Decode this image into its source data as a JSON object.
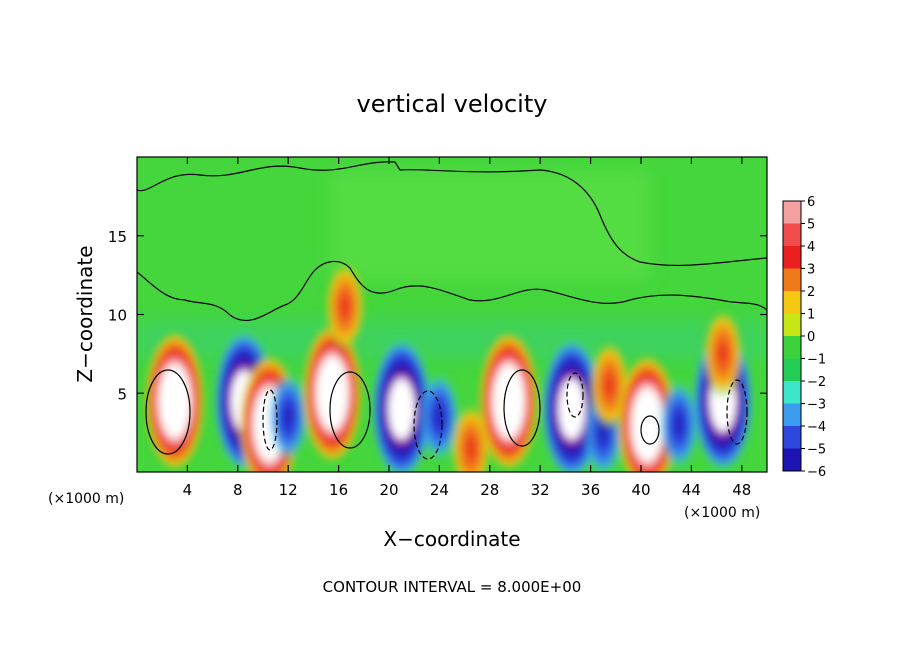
{
  "chart_data": {
    "type": "heatmap",
    "title": "vertical velocity",
    "xlabel": "X−coordinate",
    "ylabel": "Z−coordinate",
    "x_unit_left": "(×1000 m)",
    "x_unit_right": "(×1000 m)",
    "footer": "CONTOUR INTERVAL = 8.000E+00",
    "xlim": [
      0,
      50
    ],
    "ylim": [
      0,
      20
    ],
    "x_ticks": [
      4,
      8,
      12,
      16,
      20,
      24,
      28,
      32,
      36,
      40,
      44,
      48
    ],
    "x_tick_labels": [
      "4",
      "8",
      "12",
      "16",
      "20",
      "24",
      "28",
      "32",
      "36",
      "40",
      "44",
      "48"
    ],
    "y_ticks": [
      5,
      10,
      15
    ],
    "y_tick_labels": [
      "5",
      "10",
      "15"
    ],
    "colorbar": {
      "min": -6,
      "max": 6,
      "labels": [
        "6",
        "5",
        "4",
        "3",
        "2",
        "1",
        "0",
        "−1",
        "−2",
        "−3",
        "−4",
        "−5",
        "−6"
      ],
      "colors": [
        "#f5a0a0",
        "#f24b4b",
        "#ea1f1f",
        "#f07a1a",
        "#f5c814",
        "#c8e614",
        "#3cd23c",
        "#22cc55",
        "#3ce6c8",
        "#3c9cf0",
        "#2d46dc",
        "#1e14b4",
        "#7814a0"
      ]
    },
    "cells": [
      {
        "x": 3,
        "z": 4.5,
        "w": 7.0
      },
      {
        "x": 8.5,
        "z": 4.5,
        "w": -5.5
      },
      {
        "x": 10.5,
        "z": 3.0,
        "w": 6.0
      },
      {
        "x": 12.0,
        "z": 3.5,
        "w": -3.0
      },
      {
        "x": 15.5,
        "z": 5.0,
        "w": 7.0
      },
      {
        "x": 16.5,
        "z": 10.5,
        "w": 3.5
      },
      {
        "x": 21.0,
        "z": 4.0,
        "w": -6.0
      },
      {
        "x": 24.0,
        "z": 3.5,
        "w": -4.0
      },
      {
        "x": 26.5,
        "z": 1.5,
        "w": 4.0
      },
      {
        "x": 29.5,
        "z": 4.5,
        "w": 7.0
      },
      {
        "x": 34.5,
        "z": 4.0,
        "w": -5.5
      },
      {
        "x": 37.0,
        "z": 2.5,
        "w": -4.5
      },
      {
        "x": 37.5,
        "z": 5.5,
        "w": 2.5
      },
      {
        "x": 40.5,
        "z": 3.0,
        "w": 6.0
      },
      {
        "x": 43.0,
        "z": 3.0,
        "w": -4.0
      },
      {
        "x": 46.5,
        "z": 4.5,
        "w": -6.0
      },
      {
        "x": 46.5,
        "z": 7.5,
        "w": 2.0
      }
    ]
  }
}
